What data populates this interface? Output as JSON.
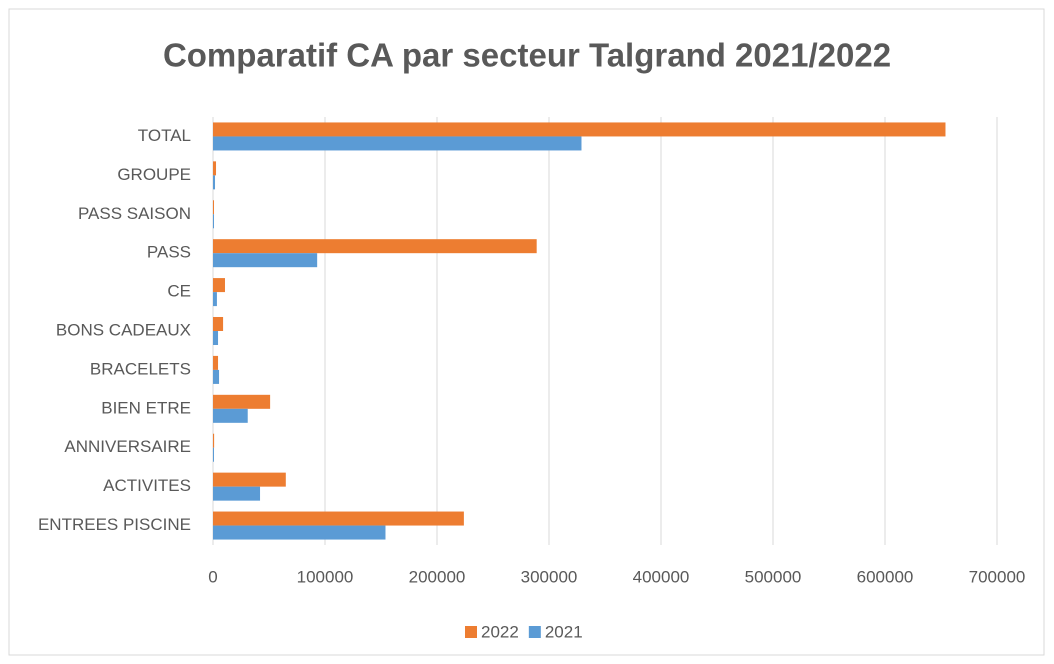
{
  "chart_data": {
    "type": "hbar",
    "title": "Comparatif CA par secteur Talgrand 2021/2022",
    "categories": [
      "ENTREES PISCINE",
      "ACTIVITES",
      "ANNIVERSAIRE",
      "BIEN ETRE",
      "BRACELETS",
      "BONS CADEAUX",
      "CE",
      "PASS",
      "PASS SAISON",
      "GROUPE",
      "TOTAL"
    ],
    "series": [
      {
        "name": "2022",
        "color": "#ED7D31",
        "values": [
          224000,
          65000,
          1000,
          51000,
          4500,
          9000,
          10700,
          289000,
          500,
          2700,
          654000
        ]
      },
      {
        "name": "2021",
        "color": "#5B9BD5",
        "values": [
          154000,
          42000,
          500,
          31000,
          5400,
          4500,
          3500,
          93000,
          500,
          1800,
          329000
        ]
      }
    ],
    "xlim": [
      0,
      700000
    ],
    "xticks": [
      0,
      100000,
      200000,
      300000,
      400000,
      500000,
      600000,
      700000
    ],
    "grid": true,
    "legend": "bottom"
  }
}
